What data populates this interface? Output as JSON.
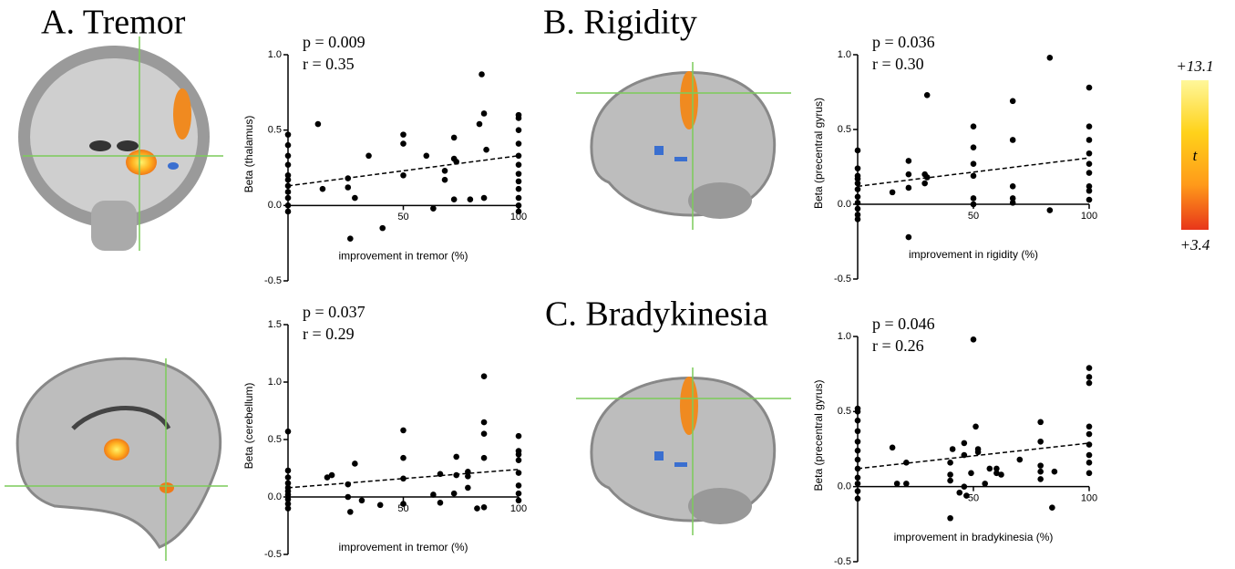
{
  "panel_titles": [
    "A. Tremor",
    "B. Rigidity",
    "C. Bradykinesia"
  ],
  "colorbar": {
    "max_label": "+13.1",
    "label": "t",
    "min_label": "+3.4"
  },
  "chart_data": [
    {
      "type": "scatter",
      "y_label": "Beta (thalamus)",
      "x_label": "improvement in tremor (%)",
      "annotations": [
        "p = 0.009",
        "r = 0.35"
      ],
      "color": "#000000",
      "x": [
        0,
        0,
        0,
        0,
        0,
        0,
        0,
        0,
        0,
        0,
        0,
        13,
        15,
        26,
        26,
        27,
        29,
        35,
        41,
        50,
        50,
        50,
        60,
        63,
        68,
        68,
        72,
        72,
        73,
        72,
        79,
        83,
        84,
        85,
        86,
        85,
        100,
        100,
        100,
        100,
        100,
        100,
        100,
        100,
        100,
        100,
        100,
        100
      ],
      "values": [
        0.47,
        0.4,
        0.33,
        0.27,
        0.2,
        0.17,
        0.13,
        0.09,
        0.05,
        0.0,
        -0.04,
        0.54,
        0.11,
        0.18,
        0.12,
        -0.22,
        0.05,
        0.33,
        -0.15,
        0.47,
        0.41,
        0.2,
        0.33,
        -0.02,
        0.23,
        0.17,
        0.45,
        0.31,
        0.29,
        0.04,
        0.04,
        0.54,
        0.87,
        0.61,
        0.37,
        0.05,
        0.6,
        0.58,
        0.5,
        0.41,
        0.33,
        0.27,
        0.21,
        0.16,
        0.11,
        0.05,
        0.0,
        -0.04
      ],
      "trend_line": {
        "x": [
          0,
          100
        ],
        "y": [
          0.13,
          0.33
        ]
      },
      "xlim": [
        0,
        100
      ],
      "xticks": [
        50,
        100
      ],
      "ylim": [
        -0.5,
        1.0
      ],
      "yticks": [
        {
          "value": 1.0,
          "label": "1.0"
        },
        0.5,
        {
          "value": 0,
          "label": "0.0"
        },
        -0.5
      ]
    },
    {
      "type": "scatter",
      "y_label": "Beta (precentral gyrus)",
      "x_label": "improvement in rigidity (%)",
      "annotations": [
        "p = 0.036",
        "r = 0.30"
      ],
      "color": "#000000",
      "x": [
        0,
        0,
        0,
        0,
        0,
        0,
        0,
        0,
        0,
        0,
        0,
        15,
        22,
        22,
        22,
        22,
        29,
        29,
        30,
        30,
        50,
        50,
        50,
        50,
        50,
        50,
        67,
        67,
        67,
        67,
        67,
        83,
        83,
        100,
        100,
        100,
        100,
        100,
        100,
        100,
        100,
        100
      ],
      "values": [
        0.36,
        0.24,
        0.19,
        0.17,
        0.14,
        0.1,
        0.05,
        0.01,
        -0.03,
        -0.07,
        -0.1,
        0.08,
        0.2,
        0.29,
        -0.22,
        0.11,
        0.14,
        0.2,
        0.73,
        0.18,
        0.52,
        0.38,
        0.27,
        0.19,
        0.04,
        0.0,
        0.69,
        0.43,
        0.12,
        0.04,
        0.01,
        0.98,
        -0.04,
        0.78,
        0.52,
        0.43,
        0.34,
        0.27,
        0.21,
        0.12,
        0.09,
        0.03
      ],
      "trend_line": {
        "x": [
          0,
          100
        ],
        "y": [
          0.12,
          0.31
        ]
      },
      "xlim": [
        0,
        100
      ],
      "xticks": [
        50,
        100
      ],
      "ylim": [
        -0.5,
        1.0
      ],
      "yticks": [
        {
          "value": 1.0,
          "label": "1.0"
        },
        0.5,
        {
          "value": 0,
          "label": "0.0"
        },
        -0.5
      ]
    },
    {
      "type": "scatter",
      "y_label": "Beta (cerebellum)",
      "x_label": "improvement in tremor (%)",
      "annotations": [
        "p = 0.037",
        "r = 0.29"
      ],
      "color": "#000000",
      "x": [
        0,
        0,
        0,
        0,
        0,
        0,
        0,
        0,
        0,
        0,
        17,
        19,
        26,
        26,
        27,
        29,
        32,
        40,
        50,
        50,
        50,
        50,
        63,
        66,
        66,
        73,
        73,
        72,
        78,
        78,
        78,
        82,
        85,
        85,
        85,
        85,
        85,
        100,
        100,
        100,
        100,
        100,
        100,
        100,
        100
      ],
      "values": [
        0.57,
        0.23,
        0.17,
        0.12,
        0.08,
        0.05,
        0.02,
        -0.02,
        -0.06,
        -0.1,
        0.17,
        0.19,
        0.11,
        0.0,
        -0.13,
        0.29,
        -0.03,
        -0.07,
        0.58,
        0.34,
        0.16,
        -0.06,
        0.02,
        -0.05,
        0.2,
        0.35,
        0.19,
        0.03,
        0.22,
        0.18,
        0.08,
        -0.1,
        1.05,
        0.65,
        0.55,
        0.34,
        -0.09,
        0.53,
        0.4,
        0.37,
        0.32,
        0.21,
        0.1,
        0.03,
        -0.03
      ],
      "trend_line": {
        "x": [
          0,
          100
        ],
        "y": [
          0.08,
          0.24
        ]
      },
      "xlim": [
        0,
        100
      ],
      "xticks": [
        50,
        100
      ],
      "ylim": [
        -0.5,
        1.5
      ],
      "yticks": [
        {
          "value": 1.5,
          "label": "1.5"
        },
        {
          "value": 1.0,
          "label": "1.0"
        },
        0.5,
        {
          "value": 0,
          "label": "0.0"
        },
        -0.5
      ]
    },
    {
      "type": "scatter",
      "y_label": "Beta (precentral gyrus)",
      "x_label": "improvement in bradykinesia (%)",
      "annotations": [
        "p = 0.046",
        "r = 0.26"
      ],
      "color": "#000000",
      "x": [
        0,
        0,
        0,
        0,
        0,
        0,
        0,
        0,
        0,
        0,
        0,
        0,
        15,
        17,
        21,
        21,
        40,
        40,
        40,
        40,
        41,
        44,
        46,
        46,
        46,
        47,
        49,
        50,
        51,
        52,
        52,
        55,
        57,
        60,
        60,
        62,
        70,
        79,
        79,
        79,
        79,
        79,
        84,
        85,
        100,
        100,
        100,
        100,
        100,
        100,
        100,
        100,
        100
      ],
      "values": [
        0.52,
        0.5,
        0.44,
        0.37,
        0.3,
        0.24,
        0.18,
        0.12,
        0.06,
        0.02,
        -0.03,
        -0.08,
        0.26,
        0.02,
        0.02,
        0.16,
        0.16,
        0.08,
        0.04,
        -0.21,
        0.25,
        -0.04,
        0.0,
        0.29,
        0.21,
        -0.06,
        0.09,
        0.98,
        0.4,
        0.25,
        0.23,
        0.02,
        0.12,
        0.12,
        0.09,
        0.08,
        0.18,
        0.43,
        0.3,
        0.14,
        0.1,
        0.05,
        -0.14,
        0.1,
        0.79,
        0.73,
        0.69,
        0.4,
        0.35,
        0.28,
        0.21,
        0.16,
        0.09
      ],
      "trend_line": {
        "x": [
          0,
          100
        ],
        "y": [
          0.12,
          0.29
        ]
      },
      "xlim": [
        0,
        100
      ],
      "xticks": [
        50,
        100
      ],
      "ylim": [
        -0.5,
        1.0
      ],
      "yticks": [
        {
          "value": 1.0,
          "label": "1.0"
        },
        0.5,
        {
          "value": 0,
          "label": "0.0"
        },
        -0.5
      ]
    }
  ]
}
